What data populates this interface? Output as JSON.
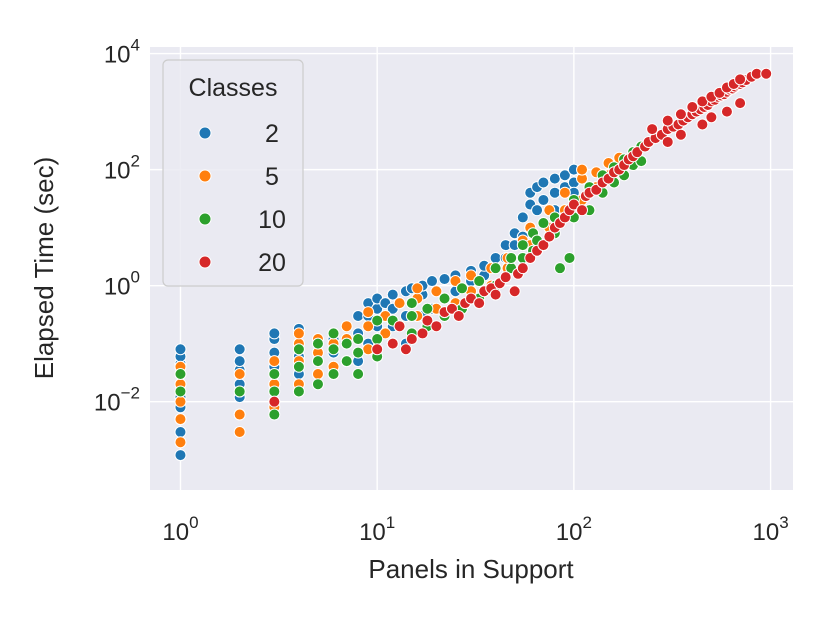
{
  "chart_data": {
    "type": "scatter",
    "xlabel": "Panels in Support",
    "ylabel": "Elapsed Time (sec)",
    "x_scale": "log",
    "y_scale": "log",
    "xlim": [
      0.7,
      1300
    ],
    "ylim": [
      0.0003,
      13000
    ],
    "x_ticks": [
      {
        "value": 1,
        "base": "10",
        "exp": "0"
      },
      {
        "value": 10,
        "base": "10",
        "exp": "1"
      },
      {
        "value": 100,
        "base": "10",
        "exp": "2"
      },
      {
        "value": 1000,
        "base": "10",
        "exp": "3"
      }
    ],
    "y_ticks": [
      {
        "value": 0.01,
        "base": "10",
        "exp": "−2"
      },
      {
        "value": 1,
        "base": "10",
        "exp": "0"
      },
      {
        "value": 100,
        "base": "10",
        "exp": "2"
      },
      {
        "value": 10000,
        "base": "10",
        "exp": "4"
      }
    ],
    "grid": true,
    "background": "#eaeaf2",
    "legend": {
      "title": "Classes",
      "placement": "top-left"
    },
    "series": [
      {
        "name": "2",
        "color": "#1f77b4",
        "points": [
          [
            1,
            0.0012
          ],
          [
            1,
            0.003
          ],
          [
            1,
            0.005
          ],
          [
            1,
            0.008
          ],
          [
            1,
            0.012
          ],
          [
            1,
            0.02
          ],
          [
            1,
            0.03
          ],
          [
            1,
            0.045
          ],
          [
            1,
            0.06
          ],
          [
            1,
            0.08
          ],
          [
            2,
            0.006
          ],
          [
            2,
            0.012
          ],
          [
            2,
            0.02
          ],
          [
            2,
            0.035
          ],
          [
            2,
            0.05
          ],
          [
            2,
            0.08
          ],
          [
            3,
            0.01
          ],
          [
            3,
            0.02
          ],
          [
            3,
            0.04
          ],
          [
            3,
            0.07
          ],
          [
            3,
            0.12
          ],
          [
            3,
            0.15
          ],
          [
            4,
            0.03
          ],
          [
            4,
            0.06
          ],
          [
            4,
            0.1
          ],
          [
            4,
            0.18
          ],
          [
            6,
            0.03
          ],
          [
            6,
            0.07
          ],
          [
            6,
            0.12
          ],
          [
            8,
            0.05
          ],
          [
            8,
            0.15
          ],
          [
            8,
            0.3
          ],
          [
            9,
            0.1
          ],
          [
            9,
            0.3
          ],
          [
            9,
            0.5
          ],
          [
            10,
            0.08
          ],
          [
            10,
            0.2
          ],
          [
            10,
            0.4
          ],
          [
            10,
            0.6
          ],
          [
            11,
            0.15
          ],
          [
            11,
            0.3
          ],
          [
            11,
            0.5
          ],
          [
            12,
            0.2
          ],
          [
            12,
            0.4
          ],
          [
            12,
            0.7
          ],
          [
            14,
            0.1
          ],
          [
            14,
            0.3
          ],
          [
            14,
            0.8
          ],
          [
            15,
            0.5
          ],
          [
            15,
            0.9
          ],
          [
            17,
            0.3
          ],
          [
            17,
            0.7
          ],
          [
            17,
            1.0
          ],
          [
            19,
            0.4
          ],
          [
            19,
            1.2
          ],
          [
            22,
            0.6
          ],
          [
            22,
            1.3
          ],
          [
            25,
            0.8
          ],
          [
            25,
            1.5
          ],
          [
            30,
            1.2
          ],
          [
            30,
            1.8
          ],
          [
            35,
            1.5
          ],
          [
            35,
            2.2
          ],
          [
            40,
            2
          ],
          [
            40,
            3
          ],
          [
            45,
            3
          ],
          [
            45,
            5
          ],
          [
            50,
            5
          ],
          [
            50,
            8
          ],
          [
            55,
            7
          ],
          [
            55,
            15
          ],
          [
            60,
            10
          ],
          [
            60,
            25
          ],
          [
            60,
            40
          ],
          [
            65,
            20
          ],
          [
            65,
            50
          ],
          [
            70,
            30
          ],
          [
            70,
            60
          ],
          [
            80,
            40
          ],
          [
            80,
            70
          ],
          [
            80,
            20
          ],
          [
            90,
            50
          ],
          [
            90,
            80
          ],
          [
            100,
            60
          ],
          [
            100,
            100
          ],
          [
            100,
            40
          ]
        ]
      },
      {
        "name": "5",
        "color": "#ff7f0e",
        "points": [
          [
            1,
            0.002
          ],
          [
            1,
            0.005
          ],
          [
            1,
            0.01
          ],
          [
            1,
            0.02
          ],
          [
            1,
            0.04
          ],
          [
            2,
            0.003
          ],
          [
            2,
            0.006
          ],
          [
            2,
            0.015
          ],
          [
            2,
            0.03
          ],
          [
            3,
            0.008
          ],
          [
            3,
            0.02
          ],
          [
            3,
            0.05
          ],
          [
            4,
            0.02
          ],
          [
            4,
            0.05
          ],
          [
            4,
            0.1
          ],
          [
            4,
            0.15
          ],
          [
            5,
            0.03
          ],
          [
            5,
            0.07
          ],
          [
            5,
            0.12
          ],
          [
            6,
            0.04
          ],
          [
            6,
            0.1
          ],
          [
            6,
            0.15
          ],
          [
            7,
            0.05
          ],
          [
            7,
            0.12
          ],
          [
            7,
            0.2
          ],
          [
            9,
            0.08
          ],
          [
            9,
            0.2
          ],
          [
            9,
            0.35
          ],
          [
            11,
            0.15
          ],
          [
            11,
            0.3
          ],
          [
            13,
            0.2
          ],
          [
            13,
            0.5
          ],
          [
            16,
            0.3
          ],
          [
            16,
            0.6
          ],
          [
            16,
            0.9
          ],
          [
            20,
            0.4
          ],
          [
            20,
            0.8
          ],
          [
            25,
            0.5
          ],
          [
            25,
            1.2
          ],
          [
            30,
            0.8
          ],
          [
            30,
            1.5
          ],
          [
            38,
            1
          ],
          [
            38,
            2
          ],
          [
            46,
            2
          ],
          [
            46,
            3
          ],
          [
            55,
            3
          ],
          [
            55,
            6
          ],
          [
            60,
            5
          ],
          [
            60,
            10
          ],
          [
            75,
            10
          ],
          [
            75,
            20
          ],
          [
            90,
            20
          ],
          [
            90,
            40
          ],
          [
            110,
            30
          ],
          [
            110,
            70
          ],
          [
            110,
            100
          ],
          [
            130,
            50
          ],
          [
            130,
            90
          ],
          [
            150,
            80
          ],
          [
            150,
            130
          ],
          [
            170,
            100
          ],
          [
            170,
            160
          ]
        ]
      },
      {
        "name": "10",
        "color": "#2ca02c",
        "points": [
          [
            1,
            0.015
          ],
          [
            1,
            0.03
          ],
          [
            2,
            0.015
          ],
          [
            3,
            0.006
          ],
          [
            3,
            0.015
          ],
          [
            3,
            0.03
          ],
          [
            4,
            0.015
          ],
          [
            4,
            0.04
          ],
          [
            4,
            0.08
          ],
          [
            5,
            0.02
          ],
          [
            5,
            0.05
          ],
          [
            5,
            0.1
          ],
          [
            6,
            0.03
          ],
          [
            6,
            0.08
          ],
          [
            6,
            0.15
          ],
          [
            7,
            0.05
          ],
          [
            7,
            0.1
          ],
          [
            8,
            0.03
          ],
          [
            8,
            0.07
          ],
          [
            8,
            0.12
          ],
          [
            10,
            0.06
          ],
          [
            10,
            0.12
          ],
          [
            10,
            0.25
          ],
          [
            12,
            0.1
          ],
          [
            12,
            0.25
          ],
          [
            15,
            0.15
          ],
          [
            15,
            0.3
          ],
          [
            15,
            0.5
          ],
          [
            18,
            0.2
          ],
          [
            18,
            0.4
          ],
          [
            22,
            0.3
          ],
          [
            22,
            0.6
          ],
          [
            27,
            0.4
          ],
          [
            27,
            0.9
          ],
          [
            33,
            0.6
          ],
          [
            33,
            1.2
          ],
          [
            40,
            1
          ],
          [
            40,
            2
          ],
          [
            48,
            2
          ],
          [
            48,
            3
          ],
          [
            55,
            3
          ],
          [
            55,
            5
          ],
          [
            62,
            4
          ],
          [
            62,
            8
          ],
          [
            70,
            5
          ],
          [
            70,
            12
          ],
          [
            80,
            8
          ],
          [
            80,
            15
          ],
          [
            85,
            2
          ],
          [
            95,
            3
          ],
          [
            65,
            6
          ],
          [
            100,
            15
          ],
          [
            100,
            30
          ],
          [
            120,
            20
          ],
          [
            120,
            50
          ],
          [
            140,
            40
          ],
          [
            140,
            80
          ],
          [
            160,
            60
          ],
          [
            160,
            110
          ],
          [
            180,
            80
          ],
          [
            180,
            150
          ],
          [
            200,
            120
          ],
          [
            200,
            200
          ],
          [
            220,
            140
          ],
          [
            220,
            250
          ]
        ]
      },
      {
        "name": "20",
        "color": "#d62728",
        "points": [
          [
            3,
            0.01
          ],
          [
            10,
            0.08
          ],
          [
            12,
            0.1
          ],
          [
            13,
            0.2
          ],
          [
            14,
            0.08
          ],
          [
            15,
            0.12
          ],
          [
            17,
            0.15
          ],
          [
            18,
            0.25
          ],
          [
            20,
            0.2
          ],
          [
            22,
            0.35
          ],
          [
            24,
            0.4
          ],
          [
            26,
            0.3
          ],
          [
            28,
            0.5
          ],
          [
            30,
            0.6
          ],
          [
            33,
            0.5
          ],
          [
            35,
            0.8
          ],
          [
            38,
            0.9
          ],
          [
            40,
            0.7
          ],
          [
            42,
            1.1
          ],
          [
            45,
            1.4
          ],
          [
            50,
            0.8
          ],
          [
            52,
            1.6
          ],
          [
            55,
            2
          ],
          [
            60,
            3
          ],
          [
            65,
            4
          ],
          [
            70,
            5
          ],
          [
            75,
            7
          ],
          [
            80,
            10
          ],
          [
            85,
            12
          ],
          [
            90,
            15
          ],
          [
            95,
            20
          ],
          [
            100,
            25
          ],
          [
            110,
            20
          ],
          [
            115,
            35
          ],
          [
            120,
            40
          ],
          [
            130,
            45
          ],
          [
            140,
            60
          ],
          [
            150,
            70
          ],
          [
            160,
            90
          ],
          [
            170,
            100
          ],
          [
            180,
            120
          ],
          [
            190,
            150
          ],
          [
            200,
            170
          ],
          [
            210,
            200
          ],
          [
            230,
            250
          ],
          [
            240,
            300
          ],
          [
            260,
            350
          ],
          [
            280,
            400
          ],
          [
            300,
            500
          ],
          [
            320,
            550
          ],
          [
            340,
            600
          ],
          [
            360,
            700
          ],
          [
            380,
            800
          ],
          [
            400,
            900
          ],
          [
            420,
            1000
          ],
          [
            440,
            1100
          ],
          [
            460,
            1200
          ],
          [
            480,
            1300
          ],
          [
            500,
            1500
          ],
          [
            520,
            1600
          ],
          [
            540,
            1800
          ],
          [
            560,
            1900
          ],
          [
            580,
            2000
          ],
          [
            600,
            2200
          ],
          [
            620,
            2400
          ],
          [
            640,
            2500
          ],
          [
            660,
            2700
          ],
          [
            680,
            2900
          ],
          [
            700,
            3000
          ],
          [
            720,
            3200
          ],
          [
            750,
            3500
          ],
          [
            800,
            4000
          ],
          [
            850,
            4500
          ],
          [
            950,
            4500
          ],
          [
            250,
            500
          ],
          [
            300,
            700
          ],
          [
            350,
            900
          ],
          [
            400,
            1200
          ],
          [
            450,
            1500
          ],
          [
            500,
            1800
          ],
          [
            550,
            2100
          ],
          [
            600,
            2600
          ],
          [
            650,
            3000
          ],
          [
            700,
            3600
          ],
          [
            300,
            300
          ],
          [
            350,
            400
          ],
          [
            450,
            600
          ],
          [
            500,
            800
          ],
          [
            600,
            1000
          ],
          [
            700,
            1400
          ]
        ]
      }
    ]
  }
}
